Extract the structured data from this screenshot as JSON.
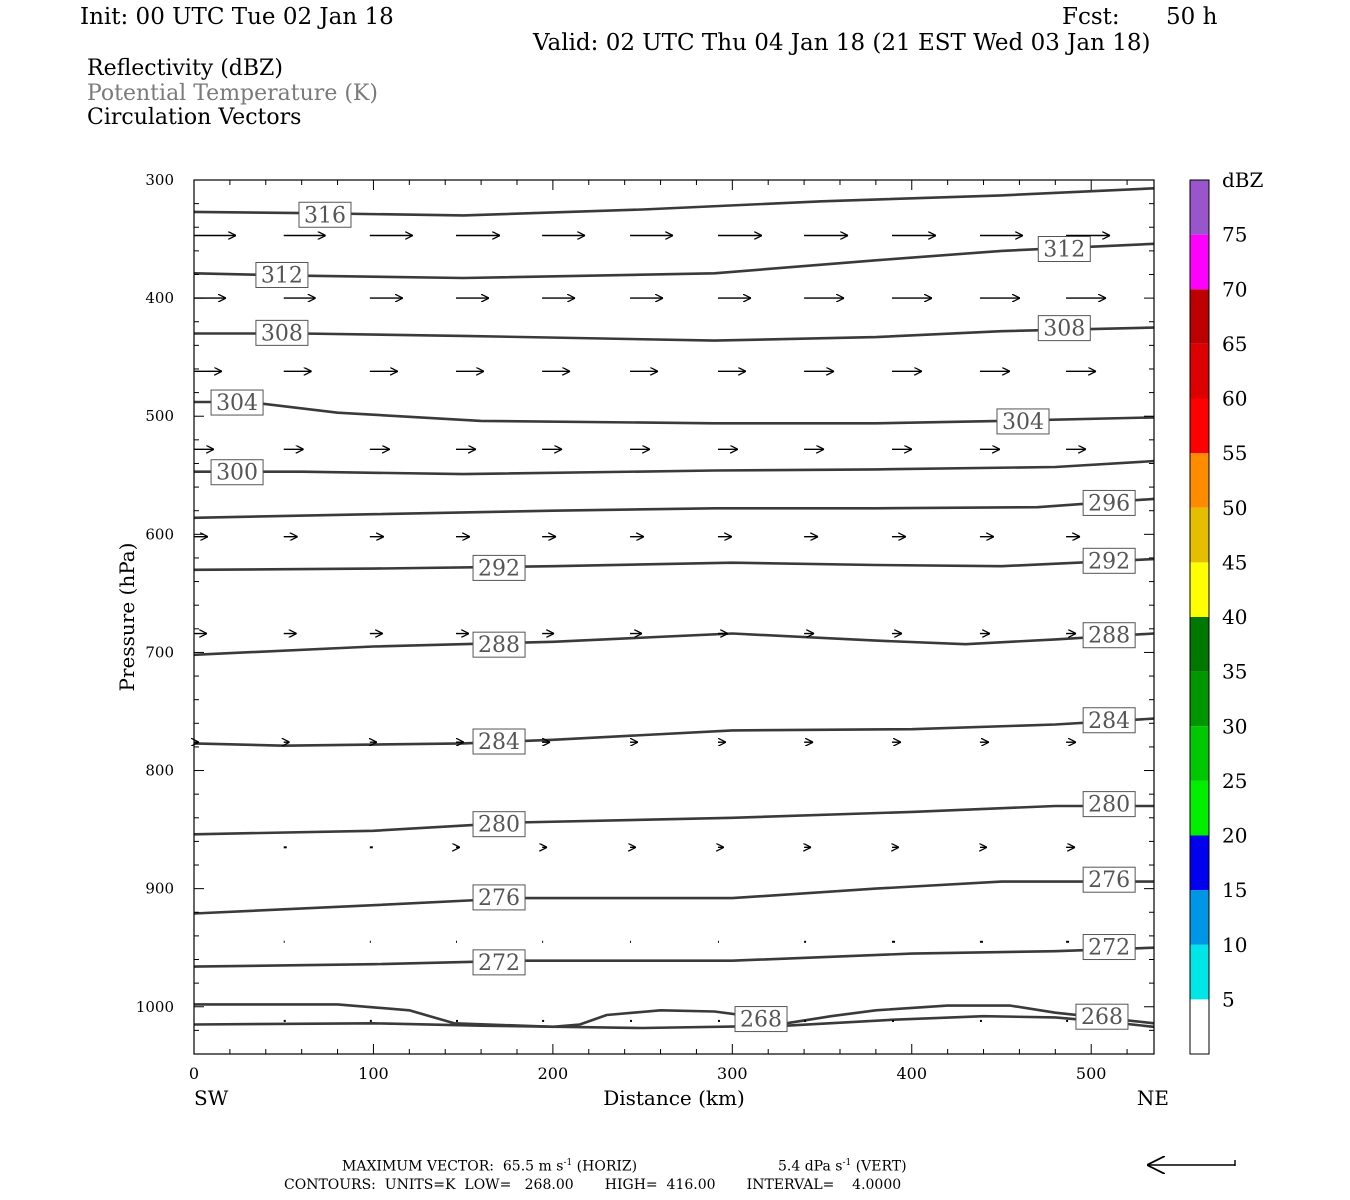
{
  "header": {
    "init": "Init: 00 UTC Tue 02 Jan 18",
    "fcst_label": "Fcst:",
    "fcst_value": "50 h",
    "valid": "Valid: 02 UTC Thu 04 Jan 18 (21 EST Wed 03 Jan 18)"
  },
  "legend": {
    "line1": "Reflectivity (dBZ)",
    "line2": "Potential Temperature (K)",
    "line3": "Circulation Vectors"
  },
  "colors": {
    "contour": "#3a3a3a",
    "legend_gray": "#7a7a7a",
    "colorbar": [
      "#ffffff",
      "#00e5e5",
      "#0096e6",
      "#0000ee",
      "#00ee00",
      "#00c800",
      "#009600",
      "#007800",
      "#ffff00",
      "#e6be00",
      "#ff8c00",
      "#ff0000",
      "#dc0000",
      "#bc0000",
      "#ff00ff",
      "#9955cc",
      "#ffffff"
    ]
  },
  "chart_data": {
    "type": "cross-section",
    "title": "Reflectivity (dBZ) / Potential Temperature (K) / Circulation Vectors",
    "xlabel": "Distance (km)",
    "ylabel": "Pressure (hPa)",
    "xlim": [
      0,
      535
    ],
    "ylim": [
      300,
      1040
    ],
    "xticks": [
      0,
      100,
      200,
      300,
      400,
      500
    ],
    "yticks": [
      300,
      400,
      500,
      600,
      700,
      800,
      900,
      1000
    ],
    "x_end_labels": {
      "left": "SW",
      "right": "NE"
    },
    "colorbar": {
      "unit": "dBZ",
      "levels": [
        5,
        10,
        15,
        20,
        25,
        30,
        35,
        40,
        45,
        50,
        55,
        60,
        65,
        70,
        75
      ],
      "range": [
        0,
        80
      ]
    },
    "isentropes": [
      {
        "theta": "316",
        "points": [
          [
            0,
            327
          ],
          [
            60,
            328
          ],
          [
            150,
            330
          ],
          [
            250,
            325
          ],
          [
            350,
            318
          ],
          [
            450,
            313
          ],
          [
            535,
            307
          ]
        ],
        "labels": [
          [
            73,
            329
          ]
        ]
      },
      {
        "theta": "312",
        "points": [
          [
            0,
            379
          ],
          [
            60,
            381
          ],
          [
            150,
            383
          ],
          [
            290,
            379
          ],
          [
            380,
            368
          ],
          [
            450,
            360
          ],
          [
            535,
            354
          ]
        ],
        "labels": [
          [
            49,
            380
          ],
          [
            485,
            358
          ]
        ]
      },
      {
        "theta": "308",
        "points": [
          [
            0,
            430
          ],
          [
            60,
            430
          ],
          [
            150,
            432
          ],
          [
            290,
            436
          ],
          [
            380,
            433
          ],
          [
            450,
            428
          ],
          [
            535,
            425
          ]
        ],
        "labels": [
          [
            49,
            429
          ],
          [
            485,
            425
          ]
        ]
      },
      {
        "theta": "304",
        "points": [
          [
            0,
            488
          ],
          [
            30,
            488
          ],
          [
            80,
            497
          ],
          [
            160,
            504
          ],
          [
            290,
            506
          ],
          [
            380,
            506
          ],
          [
            450,
            504
          ],
          [
            535,
            501
          ]
        ],
        "labels": [
          [
            24,
            488
          ],
          [
            462,
            504
          ]
        ]
      },
      {
        "theta": "300",
        "points": [
          [
            0,
            547
          ],
          [
            60,
            547
          ],
          [
            150,
            549
          ],
          [
            290,
            546
          ],
          [
            380,
            545
          ],
          [
            480,
            543
          ],
          [
            535,
            538
          ]
        ],
        "labels": [
          [
            24,
            547
          ]
        ]
      },
      {
        "theta": "296",
        "points": [
          [
            0,
            586
          ],
          [
            100,
            583
          ],
          [
            200,
            580
          ],
          [
            290,
            578
          ],
          [
            380,
            578
          ],
          [
            470,
            577
          ],
          [
            535,
            570
          ]
        ],
        "labels": [
          [
            510,
            573
          ]
        ]
      },
      {
        "theta": "292",
        "points": [
          [
            0,
            630
          ],
          [
            100,
            629
          ],
          [
            200,
            627
          ],
          [
            300,
            624
          ],
          [
            380,
            626
          ],
          [
            450,
            627
          ],
          [
            535,
            621
          ]
        ],
        "labels": [
          [
            170,
            628
          ],
          [
            510,
            622
          ]
        ]
      },
      {
        "theta": "288",
        "points": [
          [
            0,
            702
          ],
          [
            100,
            695
          ],
          [
            200,
            691
          ],
          [
            300,
            684
          ],
          [
            380,
            690
          ],
          [
            430,
            693
          ],
          [
            480,
            689
          ],
          [
            535,
            684
          ]
        ],
        "labels": [
          [
            170,
            693
          ],
          [
            510,
            685
          ]
        ]
      },
      {
        "theta": "284",
        "points": [
          [
            0,
            777
          ],
          [
            50,
            779
          ],
          [
            150,
            777
          ],
          [
            200,
            774
          ],
          [
            300,
            766
          ],
          [
            400,
            765
          ],
          [
            480,
            761
          ],
          [
            535,
            756
          ]
        ],
        "labels": [
          [
            170,
            775
          ],
          [
            510,
            757
          ]
        ]
      },
      {
        "theta": "280",
        "points": [
          [
            0,
            854
          ],
          [
            100,
            851
          ],
          [
            180,
            844
          ],
          [
            300,
            840
          ],
          [
            400,
            835
          ],
          [
            480,
            830
          ],
          [
            535,
            830
          ]
        ],
        "labels": [
          [
            170,
            845
          ],
          [
            510,
            828
          ]
        ]
      },
      {
        "theta": "276",
        "points": [
          [
            0,
            921
          ],
          [
            100,
            914
          ],
          [
            180,
            908
          ],
          [
            300,
            908
          ],
          [
            380,
            900
          ],
          [
            450,
            894
          ],
          [
            535,
            894
          ]
        ],
        "labels": [
          [
            170,
            907
          ],
          [
            510,
            892
          ]
        ]
      },
      {
        "theta": "272",
        "points": [
          [
            0,
            966
          ],
          [
            100,
            964
          ],
          [
            180,
            961
          ],
          [
            300,
            961
          ],
          [
            400,
            955
          ],
          [
            480,
            953
          ],
          [
            535,
            950
          ]
        ],
        "labels": [
          [
            170,
            962
          ],
          [
            510,
            949
          ]
        ]
      },
      {
        "theta": "268",
        "points": [
          [
            0,
            998
          ],
          [
            80,
            998
          ],
          [
            120,
            1003
          ],
          [
            145,
            1014
          ],
          [
            200,
            1017
          ],
          [
            215,
            1015
          ],
          [
            230,
            1007
          ],
          [
            260,
            1003
          ],
          [
            290,
            1004
          ],
          [
            310,
            1008
          ],
          [
            330,
            1014
          ],
          [
            355,
            1008
          ],
          [
            380,
            1003
          ],
          [
            420,
            999
          ],
          [
            455,
            999
          ],
          [
            480,
            1005
          ],
          [
            535,
            1014
          ]
        ],
        "labels": [
          [
            316,
            1010
          ],
          [
            506,
            1008
          ]
        ]
      },
      {
        "theta": "268",
        "points": [
          [
            0,
            1015
          ],
          [
            100,
            1014
          ],
          [
            160,
            1016
          ],
          [
            250,
            1018
          ],
          [
            330,
            1016
          ],
          [
            390,
            1011
          ],
          [
            440,
            1008
          ],
          [
            480,
            1009
          ],
          [
            510,
            1013
          ],
          [
            535,
            1017
          ]
        ],
        "labels": []
      }
    ],
    "vector_rows": [
      {
        "p": 347,
        "points": [
          [
            0,
            42
          ],
          [
            50,
            42
          ],
          [
            98,
            43
          ],
          [
            146,
            44
          ],
          [
            194,
            43
          ],
          [
            243,
            43
          ],
          [
            292,
            44
          ],
          [
            340,
            44
          ],
          [
            389,
            44
          ],
          [
            438,
            43
          ],
          [
            486,
            44
          ]
        ]
      },
      {
        "p": 400,
        "points": [
          [
            0,
            32
          ],
          [
            50,
            32
          ],
          [
            98,
            33
          ],
          [
            146,
            33
          ],
          [
            194,
            33
          ],
          [
            243,
            33
          ],
          [
            292,
            33
          ],
          [
            340,
            40
          ],
          [
            389,
            40
          ],
          [
            438,
            40
          ],
          [
            486,
            40
          ]
        ]
      },
      {
        "p": 462,
        "points": [
          [
            0,
            28
          ],
          [
            50,
            28
          ],
          [
            98,
            28
          ],
          [
            146,
            28
          ],
          [
            194,
            28
          ],
          [
            243,
            28
          ],
          [
            292,
            28
          ],
          [
            340,
            30
          ],
          [
            389,
            30
          ],
          [
            438,
            30
          ],
          [
            486,
            30
          ]
        ]
      },
      {
        "p": 528,
        "points": [
          [
            0,
            20
          ],
          [
            50,
            20
          ],
          [
            98,
            20
          ],
          [
            146,
            20
          ],
          [
            194,
            20
          ],
          [
            243,
            20
          ],
          [
            292,
            20
          ],
          [
            340,
            20
          ],
          [
            389,
            20
          ],
          [
            438,
            20
          ],
          [
            486,
            20
          ]
        ]
      },
      {
        "p": 602,
        "points": [
          [
            0,
            14
          ],
          [
            50,
            14
          ],
          [
            98,
            14
          ],
          [
            146,
            14
          ],
          [
            194,
            14
          ],
          [
            243,
            14
          ],
          [
            292,
            14
          ],
          [
            340,
            14
          ],
          [
            389,
            14
          ],
          [
            438,
            14
          ],
          [
            486,
            14
          ]
        ]
      },
      {
        "p": 684,
        "points": [
          [
            0,
            13
          ],
          [
            50,
            13
          ],
          [
            98,
            13
          ],
          [
            146,
            13
          ],
          [
            194,
            12
          ],
          [
            243,
            12
          ],
          [
            292,
            10
          ],
          [
            340,
            10
          ],
          [
            389,
            10
          ],
          [
            438,
            10
          ],
          [
            486,
            10
          ]
        ]
      },
      {
        "p": 776,
        "points": [
          [
            0,
            5
          ],
          [
            50,
            6
          ],
          [
            98,
            7
          ],
          [
            146,
            8
          ],
          [
            194,
            8
          ],
          [
            243,
            8
          ],
          [
            292,
            8
          ],
          [
            340,
            9
          ],
          [
            389,
            9
          ],
          [
            438,
            9
          ],
          [
            486,
            10
          ]
        ]
      },
      {
        "p": 865,
        "points": [
          [
            0,
            0
          ],
          [
            50,
            3
          ],
          [
            98,
            3
          ],
          [
            146,
            4
          ],
          [
            194,
            5
          ],
          [
            243,
            6
          ],
          [
            292,
            6
          ],
          [
            340,
            7
          ],
          [
            389,
            7
          ],
          [
            438,
            7
          ],
          [
            486,
            9
          ]
        ]
      },
      {
        "p": 945,
        "points": [
          [
            0,
            0
          ],
          [
            50,
            1
          ],
          [
            98,
            1
          ],
          [
            146,
            1
          ],
          [
            194,
            1
          ],
          [
            243,
            1
          ],
          [
            292,
            1
          ],
          [
            340,
            2
          ],
          [
            389,
            3
          ],
          [
            438,
            3
          ],
          [
            486,
            3
          ]
        ]
      },
      {
        "p": 1012,
        "points": [
          [
            0,
            0
          ],
          [
            50,
            2
          ],
          [
            98,
            2
          ],
          [
            146,
            2
          ],
          [
            194,
            2
          ],
          [
            243,
            2
          ],
          [
            292,
            2
          ],
          [
            340,
            2
          ],
          [
            389,
            2
          ],
          [
            438,
            2
          ],
          [
            486,
            2
          ]
        ]
      }
    ]
  },
  "footer": {
    "max_vector_label": "MAXIMUM VECTOR:",
    "max_vector_horiz": "65.5 m s",
    "max_vector_horiz_tag": "(HORIZ)",
    "max_vector_vert": "5.4 dPa s",
    "max_vector_vert_tag": "(VERT)",
    "exponent": "-1",
    "contours": "CONTOURS:  UNITS=K  LOW=   268.00       HIGH=  416.00       INTERVAL=    4.0000"
  }
}
